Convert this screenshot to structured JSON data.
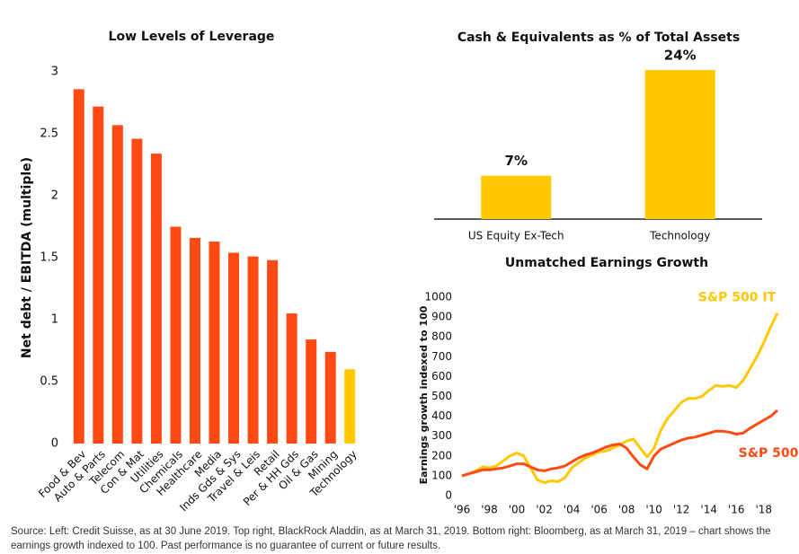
{
  "chart_data": [
    {
      "type": "bar",
      "title": "Low Levels of Leverage",
      "y_label": "Net debt / EBITDA (multiple)",
      "categories": [
        "Food & Bev",
        "Auto & Parts",
        "Telecom",
        "Con & Mat",
        "Utilities",
        "Chemicals",
        "Healthcare",
        "Media",
        "Inds Gds & Sys",
        "Travel & Leis",
        "Retail",
        "Per & HH Gds",
        "Oil & Gas",
        "Mining",
        "Technology"
      ],
      "values": [
        2.86,
        2.72,
        2.57,
        2.46,
        2.34,
        1.75,
        1.66,
        1.63,
        1.54,
        1.51,
        1.48,
        1.05,
        0.84,
        0.74,
        0.6
      ],
      "colors": [
        "#ff4a14",
        "#ff4a14",
        "#ff4a14",
        "#ff4a14",
        "#ff4a14",
        "#ff4a14",
        "#ff4a14",
        "#ff4a14",
        "#ff4a14",
        "#ff4a14",
        "#ff4a14",
        "#ff4a14",
        "#ff4a14",
        "#ff4a14",
        "#ffc800"
      ],
      "ylim": [
        0,
        3
      ],
      "yticks": [
        0,
        0.5,
        1,
        1.5,
        2,
        2.5,
        3
      ],
      "grid": false
    },
    {
      "type": "bar",
      "title": "Cash & Equivalents as % of Total Assets",
      "categories": [
        "US Equity Ex-Tech",
        "Technology"
      ],
      "values": [
        7,
        24
      ],
      "value_labels": [
        "7%",
        "24%"
      ],
      "color": "#ffc800"
    },
    {
      "type": "line",
      "title": "Unmatched Earnings Growth",
      "y_label": "Earnings growth indexed to 100",
      "x": [
        1996,
        1996.5,
        1997,
        1997.5,
        1998,
        1998.5,
        1999,
        1999.5,
        2000,
        2000.5,
        2001,
        2001.5,
        2002,
        2002.5,
        2003,
        2003.5,
        2004,
        2004.5,
        2005,
        2005.5,
        2006,
        2006.5,
        2007,
        2007.5,
        2008,
        2008.5,
        2009,
        2009.5,
        2010,
        2010.5,
        2011,
        2011.5,
        2012,
        2012.5,
        2013,
        2013.5,
        2014,
        2014.5,
        2015,
        2015.5,
        2016,
        2016.5,
        2017,
        2017.5,
        2018,
        2018.5,
        2019
      ],
      "series": [
        {
          "name": "S&P 500 IT",
          "color": "#ffc800",
          "values": [
            100,
            110,
            125,
            145,
            140,
            150,
            175,
            200,
            215,
            200,
            140,
            80,
            65,
            75,
            70,
            90,
            140,
            165,
            190,
            205,
            220,
            225,
            240,
            255,
            275,
            285,
            240,
            195,
            240,
            330,
            390,
            430,
            470,
            490,
            490,
            500,
            530,
            555,
            550,
            555,
            545,
            580,
            640,
            700,
            770,
            850,
            920
          ]
        },
        {
          "name": "S&P 500",
          "color": "#ff4a14",
          "values": [
            100,
            110,
            120,
            130,
            130,
            135,
            140,
            150,
            160,
            160,
            145,
            130,
            125,
            135,
            140,
            150,
            170,
            190,
            205,
            215,
            230,
            245,
            255,
            260,
            240,
            195,
            155,
            135,
            200,
            235,
            250,
            265,
            280,
            290,
            295,
            305,
            315,
            325,
            325,
            320,
            310,
            315,
            340,
            360,
            380,
            400,
            430
          ]
        }
      ],
      "xlim": [
        1996,
        2019
      ],
      "xticks": [
        {
          "value": 1996,
          "label": "'96"
        },
        {
          "value": 1998,
          "label": "'98"
        },
        {
          "value": 2000,
          "label": "'00"
        },
        {
          "value": 2002,
          "label": "'02"
        },
        {
          "value": 2004,
          "label": "'04"
        },
        {
          "value": 2006,
          "label": "'06"
        },
        {
          "value": 2008,
          "label": "'08"
        },
        {
          "value": 2010,
          "label": "'10"
        },
        {
          "value": 2012,
          "label": "'12"
        },
        {
          "value": 2014,
          "label": "'14"
        },
        {
          "value": 2016,
          "label": "'16"
        },
        {
          "value": 2018,
          "label": "'18"
        }
      ],
      "ylim": [
        0,
        1000
      ],
      "yticks": [
        0,
        100,
        200,
        300,
        400,
        500,
        600,
        700,
        800,
        900,
        1000
      ],
      "grid": false
    }
  ],
  "source": "Source: Left: Credit Suisse, as at 30 June 2019. Top right, BlackRock Aladdin, as at March 31, 2019. Bottom right: Bloomberg, as at March 31, 2019 – chart shows the earnings growth indexed to 100. Past performance is no guarantee of current or future results."
}
